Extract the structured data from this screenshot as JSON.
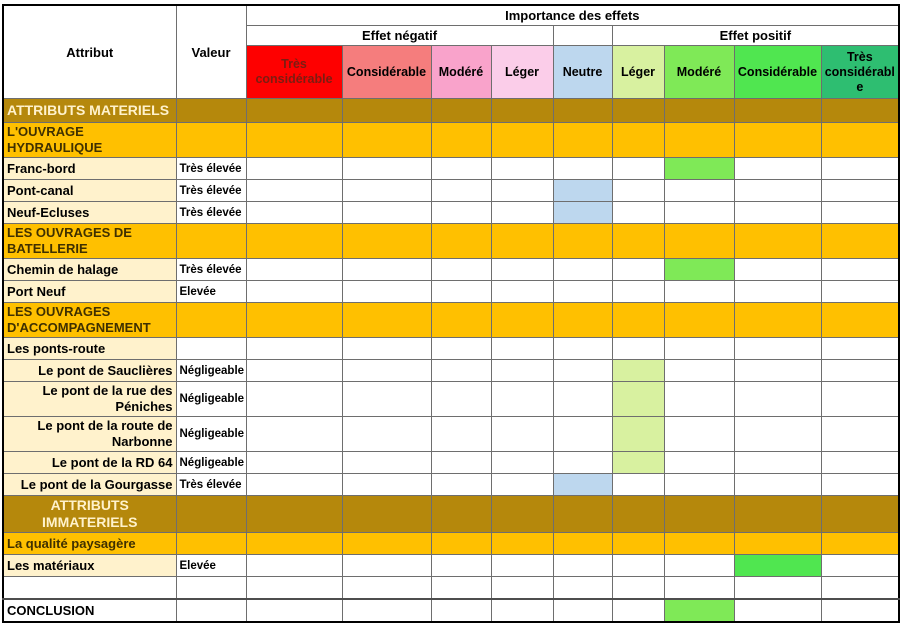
{
  "table": {
    "header": {
      "attribut": "Attribut",
      "valeur": "Valeur",
      "importance": "Importance des effets",
      "effet_negatif": "Effet négatif",
      "effet_positif": "Effet positif",
      "effect_columns": [
        {
          "group": "negatif",
          "label": "Très considérable",
          "color": "#FE0000",
          "text_color": "#7B1D12"
        },
        {
          "group": "negatif",
          "label": "Considérable",
          "color": "#F57D7D"
        },
        {
          "group": "negatif",
          "label": "Modéré",
          "color": "#F9A3CB"
        },
        {
          "group": "negatif",
          "label": "Léger",
          "color": "#FBCDE9"
        },
        {
          "group": "neutre",
          "label": "Neutre",
          "color": "#BDD7EE"
        },
        {
          "group": "positif",
          "label": "Léger",
          "color": "#D8F1A0"
        },
        {
          "group": "positif",
          "label": "Modéré",
          "color": "#7FE957"
        },
        {
          "group": "positif",
          "label": "Considérable",
          "color": "#50E650"
        },
        {
          "group": "positif",
          "label": "Très considérable",
          "color": "#2EBE71"
        }
      ]
    },
    "rows": [
      {
        "type": "major",
        "label": "ATTRIBUTS MATERIELS",
        "align": "left"
      },
      {
        "type": "section",
        "label": "L'OUVRAGE HYDRAULIQUE"
      },
      {
        "type": "data",
        "label": "Franc-bord",
        "value": "Très élevée",
        "effect_col": 7
      },
      {
        "type": "data",
        "label": "Pont-canal",
        "value": "Très élevée",
        "effect_col": 5
      },
      {
        "type": "data",
        "label": "Neuf-Ecluses",
        "value": "Très élevée",
        "effect_col": 5
      },
      {
        "type": "section",
        "label": "LES OUVRAGES DE BATELLERIE"
      },
      {
        "type": "data",
        "label": "Chemin de halage",
        "value": "Très élevée",
        "effect_col": 7
      },
      {
        "type": "data",
        "label": "Port Neuf",
        "value": "Elevée",
        "effect_col": null
      },
      {
        "type": "section",
        "label": "LES OUVRAGES D'ACCOMPAGNEMENT"
      },
      {
        "type": "data",
        "label": "Les ponts-route",
        "value": "",
        "effect_col": null
      },
      {
        "type": "data",
        "label": "Le pont de Sauclières",
        "value": "Négligeable",
        "effect_col": 6,
        "indent": true
      },
      {
        "type": "data",
        "label": "Le pont de la rue des Péniches",
        "value": "Négligeable",
        "effect_col": 6,
        "indent": true
      },
      {
        "type": "data",
        "label": "Le pont de la route de Narbonne",
        "value": "Négligeable",
        "effect_col": 6,
        "indent": true
      },
      {
        "type": "data",
        "label": "Le pont de la RD 64",
        "value": "Négligeable",
        "effect_col": 6,
        "indent": true
      },
      {
        "type": "data",
        "label": "Le pont de la Gourgasse",
        "value": "Très élevée",
        "effect_col": 5,
        "indent": true
      },
      {
        "type": "major",
        "label": "ATTRIBUTS IMMATERIELS",
        "align": "center"
      },
      {
        "type": "section",
        "label": "La qualité paysagère"
      },
      {
        "type": "data",
        "label": "Les matériaux",
        "value": "Elevée",
        "effect_col": 8
      },
      {
        "type": "blank",
        "label": "",
        "value": "",
        "effect_col": null
      },
      {
        "type": "conclusion",
        "label": "CONCLUSION",
        "value": "",
        "effect_col": 7,
        "thick_top": true
      }
    ]
  },
  "colors": {
    "major_row_bg": "#B5880C",
    "major_row_text": "#FFF2CC",
    "section_row_bg": "#FFC000",
    "section_row_text": "#3F3000",
    "attribute_cell_bg": "#FFF2CC",
    "grid_border": "#6E6E6E",
    "outer_border": "#000000"
  }
}
